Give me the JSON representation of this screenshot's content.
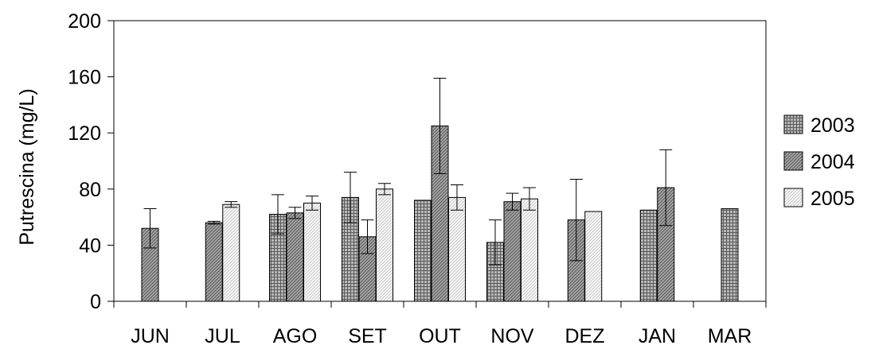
{
  "chart_data": {
    "type": "bar",
    "title": "",
    "xlabel": "",
    "ylabel": "Putrescina (mg/L)",
    "ylim": [
      0,
      200
    ],
    "yticks": [
      0,
      40,
      80,
      120,
      160,
      200
    ],
    "grid": false,
    "legend_position": "right",
    "categories": [
      "JUN",
      "JUL",
      "AGO",
      "SET",
      "OUT",
      "NOV",
      "DEZ",
      "JAN",
      "MAR"
    ],
    "groups": [
      {
        "category": "JUN",
        "bars": [
          {
            "series": "2004",
            "value": 52,
            "err": 14
          }
        ]
      },
      {
        "category": "JUL",
        "bars": [
          {
            "series": "2004",
            "value": 56,
            "err": 1
          },
          {
            "series": "2005",
            "value": 69,
            "err": 2
          }
        ]
      },
      {
        "category": "AGO",
        "bars": [
          {
            "series": "2003",
            "value": 62,
            "err": 14
          },
          {
            "series": "2004",
            "value": 63,
            "err": 4
          },
          {
            "series": "2005",
            "value": 70,
            "err": 5
          }
        ]
      },
      {
        "category": "SET",
        "bars": [
          {
            "series": "2003",
            "value": 74,
            "err": 18
          },
          {
            "series": "2004",
            "value": 46,
            "err": 12
          },
          {
            "series": "2005",
            "value": 80,
            "err": 4
          }
        ]
      },
      {
        "category": "OUT",
        "bars": [
          {
            "series": "2003",
            "value": 72,
            "err": null
          },
          {
            "series": "2004",
            "value": 125,
            "err": 34
          },
          {
            "series": "2005",
            "value": 74,
            "err": 9
          }
        ]
      },
      {
        "category": "NOV",
        "bars": [
          {
            "series": "2003",
            "value": 42,
            "err": 16
          },
          {
            "series": "2004",
            "value": 71,
            "err": 6
          },
          {
            "series": "2005",
            "value": 73,
            "err": 8
          }
        ]
      },
      {
        "category": "DEZ",
        "bars": [
          {
            "series": "2004",
            "value": 58,
            "err": 29
          },
          {
            "series": "2005",
            "value": 64,
            "err": null
          }
        ]
      },
      {
        "category": "JAN",
        "bars": [
          {
            "series": "2003",
            "value": 65,
            "err": null
          },
          {
            "series": "2004",
            "value": 81,
            "err": 27
          }
        ]
      },
      {
        "category": "MAR",
        "bars": [
          {
            "series": "2003",
            "value": 66,
            "err": null
          }
        ]
      }
    ],
    "series": [
      {
        "name": "2003",
        "color": "#9a9a9a",
        "pattern": "grid"
      },
      {
        "name": "2004",
        "color": "#8a8a8a",
        "pattern": "diagonal"
      },
      {
        "name": "2005",
        "color": "#f0f0f0",
        "pattern": "light"
      }
    ]
  }
}
